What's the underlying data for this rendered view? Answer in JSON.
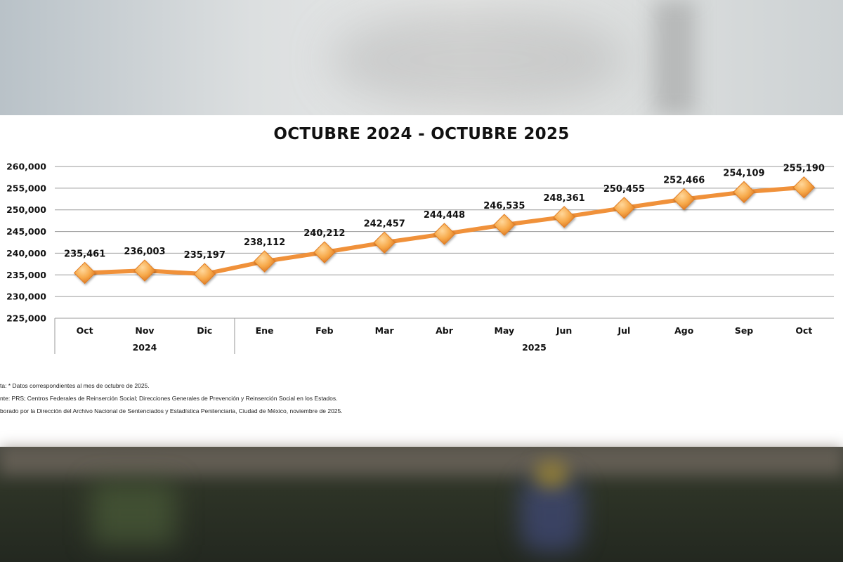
{
  "chart_data": {
    "type": "line",
    "title": "OCTUBRE 2024 - OCTUBRE 2025",
    "categories": [
      "Oct",
      "Nov",
      "Dic",
      "Ene",
      "Feb",
      "Mar",
      "Abr",
      "May",
      "Jun",
      "Jul",
      "Ago",
      "Sep",
      "Oct"
    ],
    "year_groups": [
      {
        "label": "2024",
        "count": 3
      },
      {
        "label": "2025",
        "count": 10
      }
    ],
    "values": [
      235461,
      236003,
      235197,
      238112,
      240212,
      242457,
      244448,
      246535,
      248361,
      250455,
      252466,
      254109,
      255190
    ],
    "value_labels": [
      "235,461",
      "236,003",
      "235,197",
      "238,112",
      "240,212",
      "242,457",
      "244,448",
      "246,535",
      "248,361",
      "250,455",
      "252,466",
      "254,109",
      "255,190"
    ],
    "ylim": [
      225000,
      260000
    ],
    "y_ticks": [
      225000,
      230000,
      235000,
      240000,
      245000,
      250000,
      255000,
      260000
    ],
    "y_tick_labels": [
      "225,000",
      "230,000",
      "235,000",
      "240,000",
      "245,000",
      "250,000",
      "255,000",
      "260,000"
    ],
    "grid": true,
    "line_color": "#f0913a",
    "marker_color": "#f7a94a",
    "marker": "diamond"
  },
  "notes": [
    "ta: * Datos correspondientes al mes de octubre de 2025.",
    "nte: PRS; Centros Federales de Reinserción Social; Direcciones Generales de Prevención y Reinserción Social en los Estados.",
    "borado por la Dirección del Archivo Nacional de Sentenciados y Estadística Penitenciaria, Ciudad de México, noviembre de 2025."
  ]
}
